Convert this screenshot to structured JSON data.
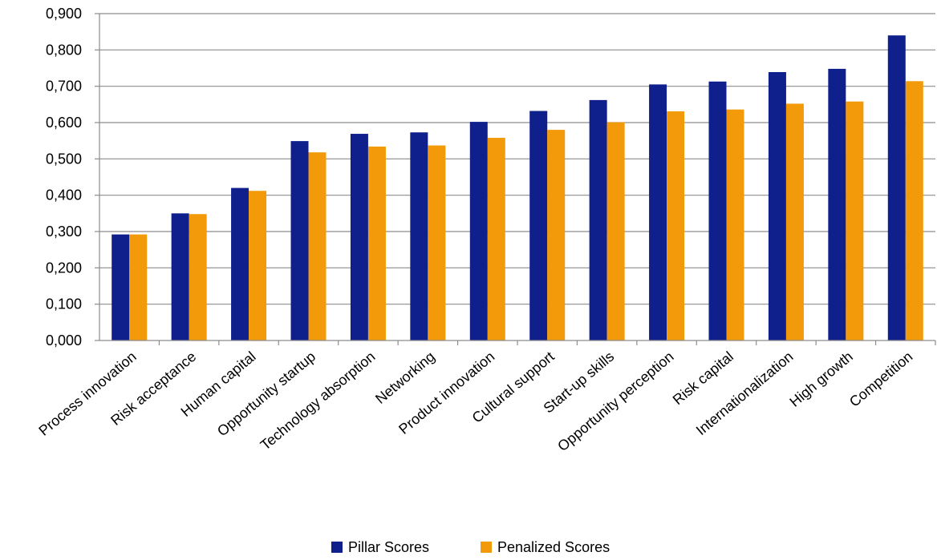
{
  "chart_data": {
    "type": "bar",
    "categories": [
      "Process innovation",
      "Risk acceptance",
      "Human capital",
      "Opportunity startup",
      "Technology absorption",
      "Networking",
      "Product innovation",
      "Cultural support",
      "Start-up skills",
      "Opportunity perception",
      "Risk capital",
      "Internationalization",
      "High growth",
      "Competition"
    ],
    "series": [
      {
        "name": "Pillar Scores",
        "color": "#0f1f8c",
        "values": [
          0.292,
          0.35,
          0.42,
          0.549,
          0.569,
          0.573,
          0.602,
          0.632,
          0.662,
          0.705,
          0.713,
          0.739,
          0.748,
          0.84
        ]
      },
      {
        "name": "Penalized Scores",
        "color": "#f39a0b",
        "values": [
          0.292,
          0.348,
          0.412,
          0.518,
          0.534,
          0.537,
          0.558,
          0.58,
          0.601,
          0.631,
          0.636,
          0.652,
          0.658,
          0.714
        ]
      }
    ],
    "yticks": [
      "0,000",
      "0,100",
      "0,200",
      "0,300",
      "0,400",
      "0,500",
      "0,600",
      "0,700",
      "0,800",
      "0,900"
    ],
    "ylim": [
      0,
      0.9
    ],
    "grid": true,
    "legend_position": "bottom-center",
    "title": "",
    "xlabel": "",
    "ylabel": ""
  }
}
